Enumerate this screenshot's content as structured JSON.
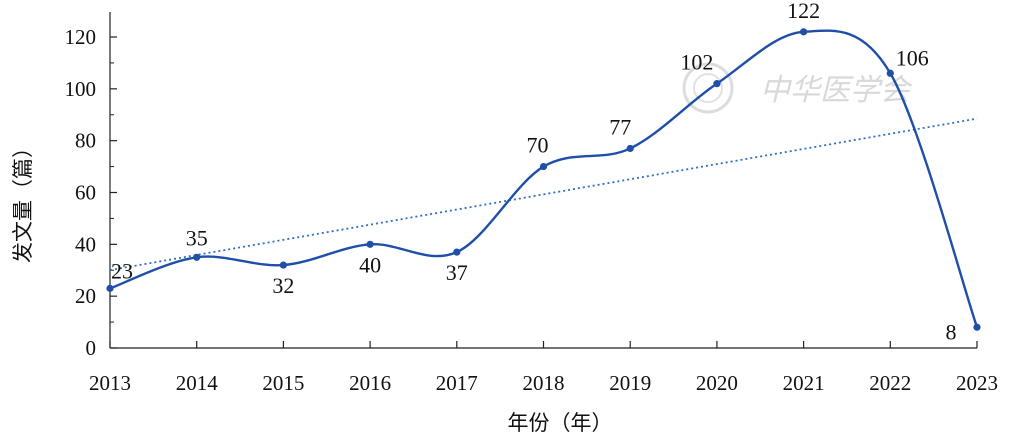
{
  "chart_data": {
    "type": "line",
    "x": [
      2013,
      2014,
      2015,
      2016,
      2017,
      2018,
      2019,
      2020,
      2021,
      2022,
      2023
    ],
    "series": [
      {
        "values": [
          23,
          35,
          32,
          40,
          37,
          70,
          77,
          102,
          122,
          106,
          8
        ]
      }
    ],
    "trendline": {
      "type": "linear",
      "style": "dotted"
    },
    "xlabel": "年份（年）",
    "ylabel": "发文量（篇）",
    "xlim": [
      2013,
      2023
    ],
    "ylim": [
      0,
      120
    ],
    "yticks": [
      0,
      20,
      40,
      60,
      80,
      100,
      120
    ],
    "grid": false,
    "data_labels": true,
    "line_color": "#1f4fa8",
    "trend_color": "#2f6fc0"
  },
  "watermark": {
    "text": "中华医学会",
    "color": "#d9d9d9"
  }
}
